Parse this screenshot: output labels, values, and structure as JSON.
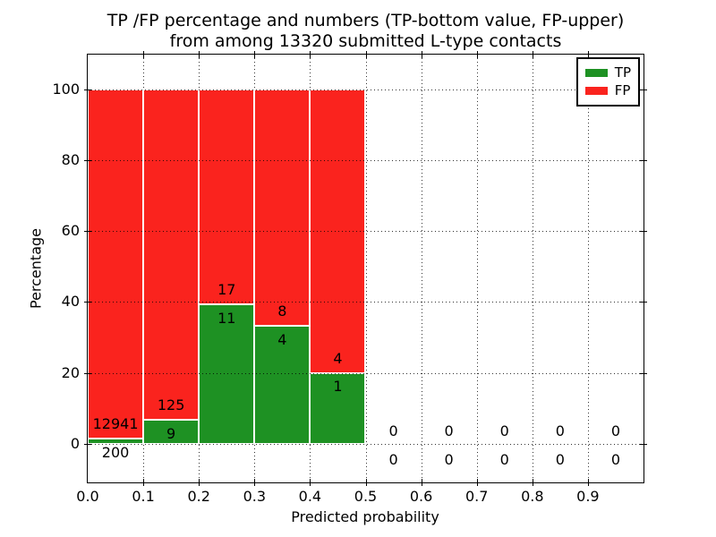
{
  "chart_data": {
    "type": "bar",
    "stacked": true,
    "title_lines": [
      "TP /FP percentage and numbers (TP-bottom value, FP-upper)",
      "from among 13320 submitted L-type contacts"
    ],
    "title": "TP /FP percentage and numbers (TP-bottom value, FP-upper) from among 13320 submitted L-type contacts",
    "xlabel": "Predicted probability",
    "ylabel": "Percentage",
    "total_contacts": 13320,
    "xlim": [
      0.0,
      1.0
    ],
    "ylim": [
      -10.9,
      109.8
    ],
    "x_ticks": [
      "0.0",
      "0.1",
      "0.2",
      "0.3",
      "0.4",
      "0.5",
      "0.6",
      "0.7",
      "0.8",
      "0.9"
    ],
    "y_ticks": [
      0,
      20,
      40,
      60,
      80,
      100
    ],
    "grid": true,
    "bar_unit": "percent of bin total (TP% + FP% = 100)",
    "label_unit": "raw counts (FP above, TP below)",
    "bins": [
      {
        "range": [
          0.0,
          0.1
        ],
        "tp": 200,
        "fp": 12941
      },
      {
        "range": [
          0.1,
          0.2
        ],
        "tp": 9,
        "fp": 125
      },
      {
        "range": [
          0.2,
          0.3
        ],
        "tp": 11,
        "fp": 17
      },
      {
        "range": [
          0.3,
          0.4
        ],
        "tp": 4,
        "fp": 8
      },
      {
        "range": [
          0.4,
          0.5
        ],
        "tp": 1,
        "fp": 4
      },
      {
        "range": [
          0.5,
          0.6
        ],
        "tp": 0,
        "fp": 0
      },
      {
        "range": [
          0.6,
          0.7
        ],
        "tp": 0,
        "fp": 0
      },
      {
        "range": [
          0.7,
          0.8
        ],
        "tp": 0,
        "fp": 0
      },
      {
        "range": [
          0.8,
          0.9
        ],
        "tp": 0,
        "fp": 0
      },
      {
        "range": [
          0.9,
          1.0
        ],
        "tp": 0,
        "fp": 0
      }
    ],
    "legend": {
      "position": "upper right",
      "entries": [
        {
          "label": "TP",
          "color": "#1e9123"
        },
        {
          "label": "FP",
          "color": "#fa231e"
        }
      ]
    },
    "colors": {
      "tp": "#1e9123",
      "fp": "#fa231e",
      "grid": "#000000",
      "text": "#000000",
      "background": "#ffffff",
      "bar_edge": "#ffffff"
    }
  }
}
